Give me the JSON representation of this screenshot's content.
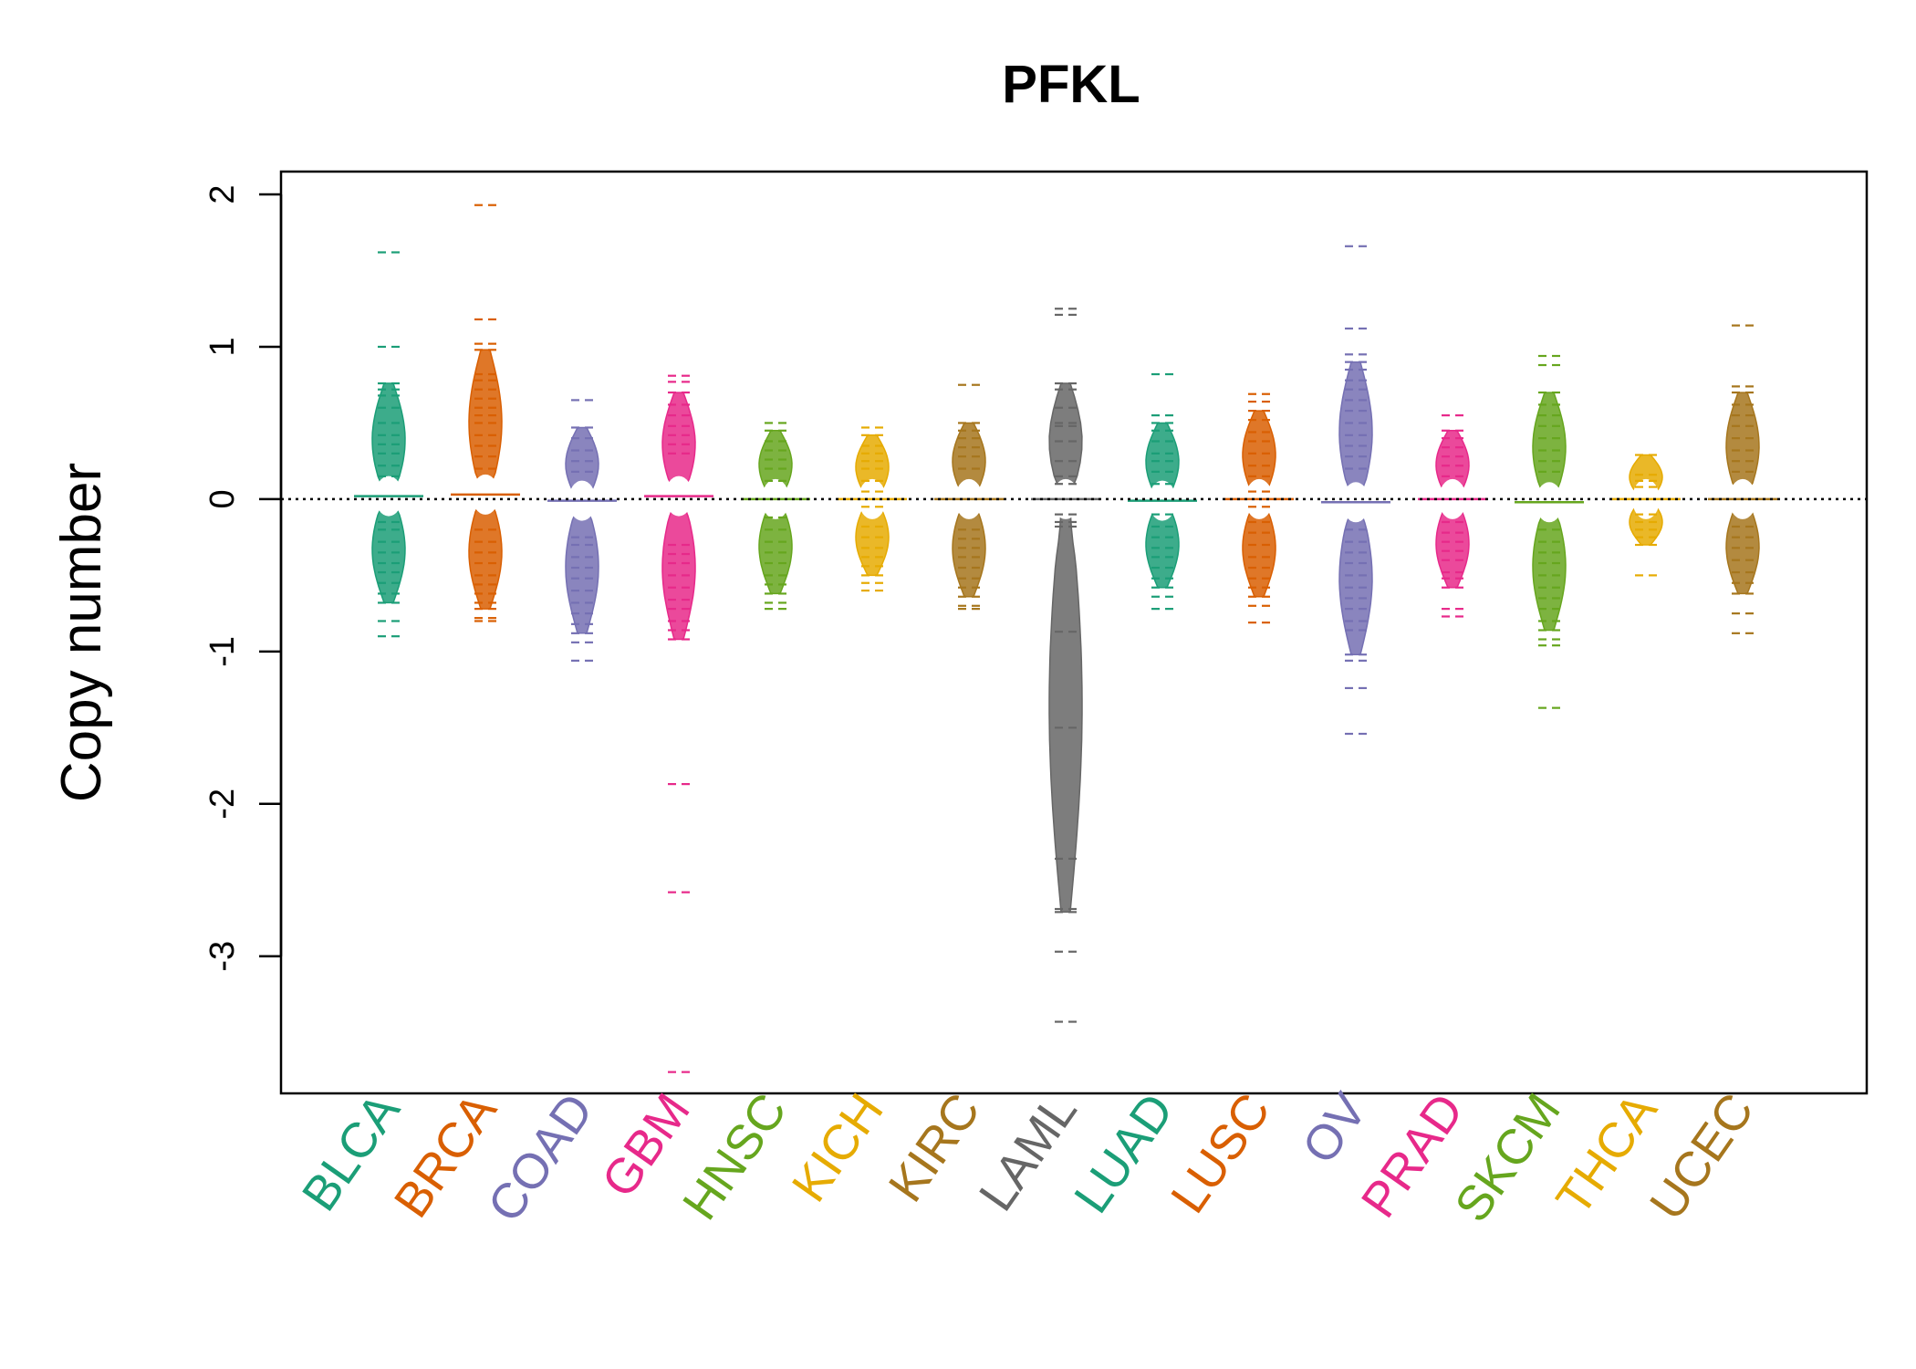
{
  "chart_data": {
    "type": "beanplot",
    "title": "PFKL",
    "xlabel": "",
    "ylabel": "Copy number",
    "ylim": [
      -3.9,
      2.15
    ],
    "yticks": [
      2,
      1,
      0,
      -1,
      -2,
      -3
    ],
    "reference_line": 0,
    "grid": false,
    "categories": [
      {
        "name": "BLCA",
        "color": "#1B9E77",
        "median": 0.02,
        "min": -0.9,
        "max": 1.62,
        "points": [
          1.62,
          1.0,
          0.76,
          0.72,
          0.68,
          0.6,
          0.5,
          0.42,
          0.36,
          0.3,
          0.22,
          0.15,
          -0.15,
          -0.2,
          -0.28,
          -0.35,
          -0.42,
          -0.48,
          -0.55,
          -0.62,
          -0.68,
          -0.8,
          -0.9
        ]
      },
      {
        "name": "BRCA",
        "color": "#D95F02",
        "median": 0.03,
        "min": -0.8,
        "max": 1.93,
        "points": [
          1.93,
          1.18,
          1.02,
          0.98,
          0.82,
          0.78,
          0.72,
          0.66,
          0.6,
          0.55,
          0.5,
          0.42,
          0.35,
          0.28,
          0.2,
          -0.2,
          -0.28,
          -0.35,
          -0.42,
          -0.5,
          -0.56,
          -0.62,
          -0.68,
          -0.72,
          -0.78,
          -0.8
        ]
      },
      {
        "name": "COAD",
        "color": "#7570B3",
        "median": -0.01,
        "min": -1.06,
        "max": 0.65,
        "points": [
          0.65,
          0.47,
          0.4,
          0.32,
          0.25,
          0.18,
          -0.25,
          -0.3,
          -0.38,
          -0.45,
          -0.52,
          -0.6,
          -0.68,
          -0.75,
          -0.82,
          -0.88,
          -0.94,
          -1.06
        ]
      },
      {
        "name": "GBM",
        "color": "#E7298A",
        "median": 0.02,
        "min": -3.76,
        "max": 0.81,
        "points": [
          0.81,
          0.77,
          0.7,
          0.62,
          0.55,
          0.48,
          0.42,
          0.36,
          0.3,
          -0.3,
          -0.36,
          -0.42,
          -0.5,
          -0.58,
          -0.66,
          -0.72,
          -0.8,
          -0.86,
          -0.92,
          -1.87,
          -2.58,
          -3.76
        ]
      },
      {
        "name": "HNSC",
        "color": "#66A61E",
        "median": 0.0,
        "min": -0.72,
        "max": 0.5,
        "points": [
          0.5,
          0.45,
          0.38,
          0.32,
          0.26,
          0.2,
          0.12,
          -0.12,
          -0.2,
          -0.28,
          -0.35,
          -0.42,
          -0.5,
          -0.56,
          -0.62,
          -0.68,
          -0.72
        ]
      },
      {
        "name": "KICH",
        "color": "#E6AB02",
        "median": 0.0,
        "min": -0.6,
        "max": 0.47,
        "points": [
          0.47,
          0.42,
          0.35,
          0.3,
          0.25,
          0.2,
          0.12,
          0.05,
          -0.05,
          -0.18,
          -0.25,
          -0.32,
          -0.38,
          -0.44,
          -0.5,
          -0.55,
          -0.6
        ]
      },
      {
        "name": "KIRC",
        "color": "#A6761D",
        "median": 0.0,
        "min": -0.72,
        "max": 0.75,
        "points": [
          0.75,
          0.5,
          0.45,
          0.4,
          0.34,
          0.28,
          0.2,
          -0.2,
          -0.26,
          -0.32,
          -0.38,
          -0.45,
          -0.52,
          -0.58,
          -0.64,
          -0.7,
          -0.72
        ]
      },
      {
        "name": "LAML",
        "color": "#666666",
        "median": 0.0,
        "min": -3.43,
        "max": 1.25,
        "points": [
          1.25,
          1.21,
          0.76,
          0.72,
          0.6,
          0.5,
          0.48,
          0.38,
          0.25,
          0.15,
          0.1,
          -0.1,
          -0.15,
          -0.18,
          -0.87,
          -1.5,
          -2.36,
          -2.69,
          -2.71,
          -2.97,
          -3.43
        ]
      },
      {
        "name": "LUAD",
        "color": "#1B9E77",
        "median": -0.01,
        "min": -0.72,
        "max": 0.82,
        "points": [
          0.82,
          0.55,
          0.5,
          0.45,
          0.38,
          0.3,
          0.25,
          0.18,
          0.1,
          -0.1,
          -0.18,
          -0.25,
          -0.32,
          -0.38,
          -0.45,
          -0.52,
          -0.58,
          -0.64,
          -0.72
        ]
      },
      {
        "name": "LUSC",
        "color": "#D95F02",
        "median": 0.0,
        "min": -0.81,
        "max": 0.69,
        "points": [
          0.69,
          0.64,
          0.58,
          0.52,
          0.44,
          0.38,
          0.3,
          0.22,
          0.15,
          0.05,
          -0.05,
          -0.15,
          -0.22,
          -0.3,
          -0.38,
          -0.45,
          -0.52,
          -0.58,
          -0.64,
          -0.7,
          -0.81
        ]
      },
      {
        "name": "OV",
        "color": "#7570B3",
        "median": -0.02,
        "min": -1.54,
        "max": 1.66,
        "points": [
          1.66,
          1.12,
          0.95,
          0.9,
          0.85,
          0.78,
          0.72,
          0.65,
          0.58,
          0.5,
          0.42,
          0.35,
          0.28,
          0.2,
          -0.2,
          -0.28,
          -0.35,
          -0.42,
          -0.5,
          -0.58,
          -0.65,
          -0.72,
          -0.8,
          -0.86,
          -1.02,
          -1.06,
          -1.24,
          -1.54
        ]
      },
      {
        "name": "PRAD",
        "color": "#E7298A",
        "median": 0.0,
        "min": -0.77,
        "max": 0.55,
        "points": [
          0.55,
          0.45,
          0.4,
          0.34,
          0.28,
          0.22,
          0.15,
          -0.15,
          -0.22,
          -0.28,
          -0.34,
          -0.4,
          -0.48,
          -0.52,
          -0.58,
          -0.72,
          -0.77
        ]
      },
      {
        "name": "SKCM",
        "color": "#66A61E",
        "median": -0.02,
        "min": -1.37,
        "max": 0.94,
        "points": [
          0.94,
          0.88,
          0.7,
          0.62,
          0.55,
          0.48,
          0.4,
          0.32,
          0.25,
          0.18,
          -0.2,
          -0.28,
          -0.35,
          -0.42,
          -0.5,
          -0.58,
          -0.65,
          -0.72,
          -0.8,
          -0.86,
          -0.92,
          -0.96,
          -1.37
        ]
      },
      {
        "name": "THCA",
        "color": "#E6AB02",
        "median": 0.0,
        "min": -0.5,
        "max": 0.29,
        "points": [
          0.29,
          0.16,
          0.12,
          0.08,
          -0.1,
          -0.15,
          -0.2,
          -0.25,
          -0.3,
          -0.5
        ]
      },
      {
        "name": "UCEC",
        "color": "#A6761D",
        "median": 0.0,
        "min": -0.88,
        "max": 1.14,
        "points": [
          1.14,
          0.74,
          0.7,
          0.62,
          0.55,
          0.48,
          0.4,
          0.32,
          0.25,
          0.18,
          -0.18,
          -0.25,
          -0.32,
          -0.4,
          -0.48,
          -0.55,
          -0.62,
          -0.75,
          -0.88
        ]
      }
    ]
  }
}
